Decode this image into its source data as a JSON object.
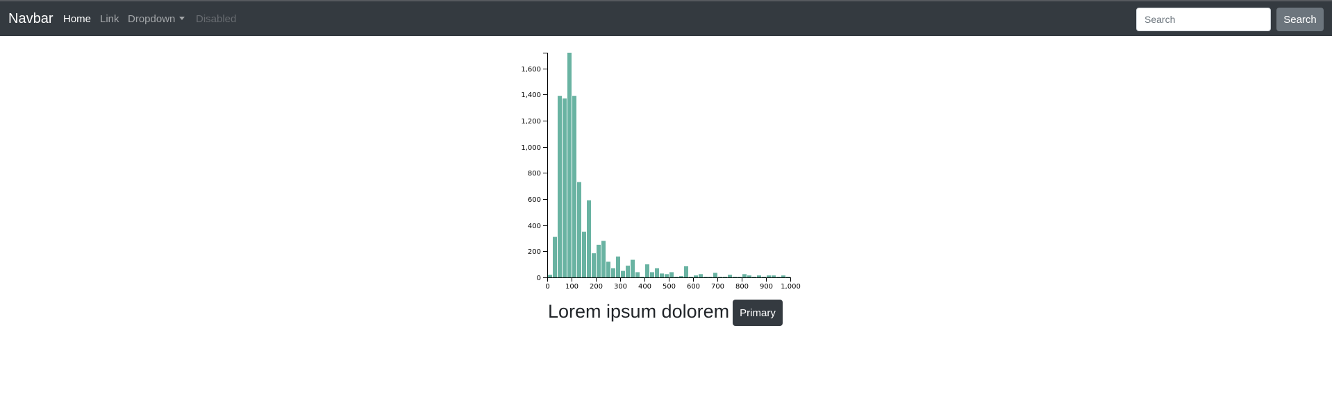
{
  "navbar": {
    "brand": "Navbar",
    "links": [
      {
        "label": "Home",
        "state": "active"
      },
      {
        "label": "Link",
        "state": "normal"
      },
      {
        "label": "Dropdown",
        "state": "dropdown"
      },
      {
        "label": "Disabled",
        "state": "disabled"
      }
    ],
    "search": {
      "placeholder": "Search",
      "value": "",
      "button_label": "Search"
    }
  },
  "colors": {
    "navbar_bg": "#343a40",
    "bar_fill": "#69b3a2",
    "secondary_button": "#6c757d",
    "primary_button": "#343a40"
  },
  "main": {
    "heading": "Lorem ipsum dolorem",
    "primary_button_label": "Primary"
  },
  "chart_data": {
    "type": "bar",
    "subtype": "histogram",
    "bin_width": 20,
    "xlim": [
      0,
      1000
    ],
    "ylim": [
      0,
      1720
    ],
    "xticks": [
      0,
      100,
      200,
      300,
      400,
      500,
      600,
      700,
      800,
      900,
      1000
    ],
    "xtick_labels": [
      "0",
      "100",
      "200",
      "300",
      "400",
      "500",
      "600",
      "700",
      "800",
      "900",
      "1,000"
    ],
    "yticks": [
      0,
      200,
      400,
      600,
      800,
      1000,
      1200,
      1400,
      1600
    ],
    "ytick_labels": [
      "0",
      "200",
      "400",
      "600",
      "800",
      "1,000",
      "1,200",
      "1,400",
      "1,600"
    ],
    "x": [
      0,
      20,
      40,
      60,
      80,
      100,
      120,
      140,
      160,
      180,
      200,
      220,
      240,
      260,
      280,
      300,
      320,
      340,
      360,
      380,
      400,
      420,
      440,
      460,
      480,
      500,
      520,
      540,
      560,
      580,
      600,
      620,
      640,
      660,
      680,
      700,
      720,
      740,
      760,
      780,
      800,
      820,
      840,
      860,
      880,
      900,
      920,
      940,
      960,
      980
    ],
    "values": [
      20,
      310,
      1390,
      1370,
      1720,
      1390,
      730,
      350,
      590,
      185,
      250,
      280,
      120,
      70,
      160,
      50,
      90,
      135,
      40,
      5,
      100,
      40,
      70,
      30,
      25,
      40,
      5,
      10,
      85,
      5,
      15,
      25,
      5,
      5,
      35,
      5,
      5,
      20,
      5,
      5,
      25,
      15,
      5,
      15,
      5,
      15,
      15,
      5,
      15,
      5
    ],
    "title": "",
    "xlabel": "",
    "ylabel": "",
    "grid": false
  }
}
